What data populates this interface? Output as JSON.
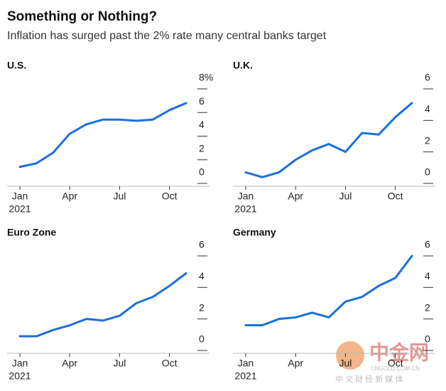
{
  "title": "Something or Nothing?",
  "subtitle": "Inflation has surged past the 2% rate many central banks target",
  "watermark": {
    "logo": "中金网",
    "url": "CNGOLD.COM.CN",
    "tagline": "中 文 财 经 新 媒 体"
  },
  "chart_data": [
    {
      "type": "line",
      "title": "U.S.",
      "year": "2021",
      "categories": [
        "Jan",
        null,
        null,
        "Apr",
        null,
        null,
        "Jul",
        null,
        null,
        "Oct",
        null
      ],
      "series": [
        {
          "color": "#1a6fe0",
          "values": [
            1.4,
            1.7,
            2.6,
            4.2,
            5.0,
            5.4,
            5.4,
            5.3,
            5.4,
            6.2,
            6.8
          ]
        }
      ],
      "ylim": [
        0,
        8
      ],
      "yticks": [
        0,
        2,
        4,
        6,
        {
          "value": 8,
          "label": "8%"
        }
      ]
    },
    {
      "type": "line",
      "title": "U.K.",
      "year": "2021",
      "categories": [
        "Jan",
        null,
        null,
        "Apr",
        null,
        null,
        "Jul",
        null,
        null,
        "Oct",
        null
      ],
      "series": [
        {
          "color": "#1a6fe0",
          "values": [
            0.7,
            0.4,
            0.7,
            1.5,
            2.1,
            2.5,
            2.0,
            3.2,
            3.1,
            4.2,
            5.1
          ]
        }
      ],
      "ylim": [
        0,
        6
      ],
      "yticks": [
        0,
        2,
        4,
        6
      ]
    },
    {
      "type": "line",
      "title": "Euro Zone",
      "year": "2021",
      "categories": [
        "Jan",
        null,
        null,
        "Apr",
        null,
        null,
        "Jul",
        null,
        null,
        "Oct",
        null
      ],
      "series": [
        {
          "color": "#1a6fe0",
          "values": [
            0.9,
            0.9,
            1.3,
            1.6,
            2.0,
            1.9,
            2.2,
            3.0,
            3.4,
            4.1,
            4.9
          ]
        }
      ],
      "ylim": [
        0,
        6
      ],
      "yticks": [
        0,
        2,
        4,
        6
      ]
    },
    {
      "type": "line",
      "title": "Germany",
      "year": "2021",
      "categories": [
        "Jan",
        null,
        null,
        "Apr",
        null,
        null,
        "Jul",
        null,
        null,
        "Oct",
        null
      ],
      "series": [
        {
          "color": "#1a6fe0",
          "values": [
            1.6,
            1.6,
            2.0,
            2.1,
            2.4,
            2.1,
            3.1,
            3.4,
            4.1,
            4.6,
            6.0
          ]
        }
      ],
      "ylim": [
        0,
        6
      ],
      "yticks": [
        0,
        2,
        4,
        6
      ]
    }
  ]
}
